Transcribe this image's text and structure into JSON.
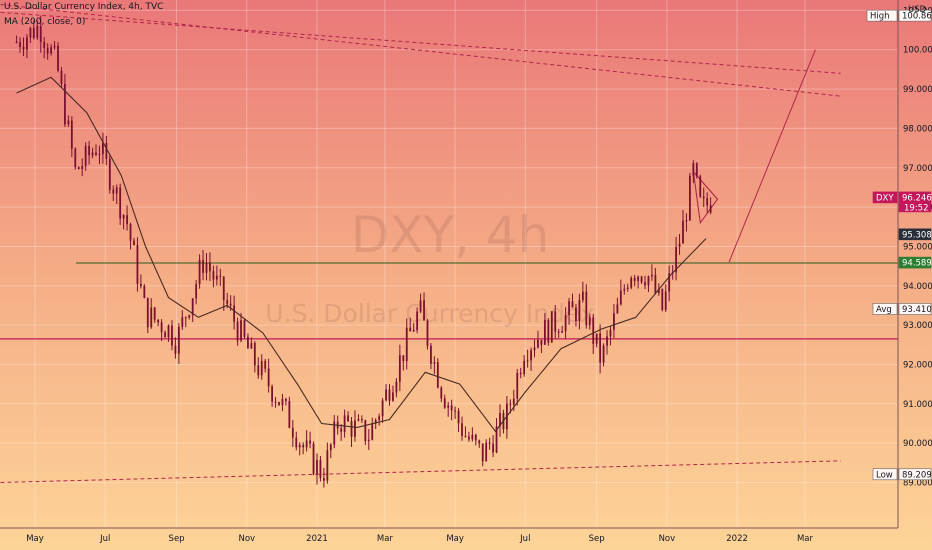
{
  "header": {
    "title": "U.S. Dollar Currency Index, 4h, TVC",
    "indicator": "MA (200, close, 0)"
  },
  "watermark": {
    "symbol": "DXY, 4h",
    "name": "U.S. Dollar Currency Index"
  },
  "currency_label": "USD",
  "colors": {
    "candle": "#7a1030",
    "moving_average": "#4a2a22",
    "support_line": "#c2185b",
    "resistance_line": "#556b2f",
    "trend_dashed": "#b0264a",
    "price_tag": "#c2185b",
    "level_tag": "#2e7d32",
    "dark_tag": "#2a2e39"
  },
  "chart_data": {
    "type": "candlestick",
    "title": "U.S. Dollar Currency Index, 4h, TVC",
    "xlabel": "",
    "ylabel": "",
    "ylim": [
      88.2,
      101.1
    ],
    "y_ticks": [
      "101.000",
      "100.000",
      "99.000",
      "98.000",
      "97.000",
      "96.000",
      "95.000",
      "94.000",
      "93.000",
      "92.000",
      "91.000",
      "90.000",
      "89.000"
    ],
    "x_ticks": [
      "May",
      "Jul",
      "Sep",
      "Nov",
      "2021",
      "Mar",
      "May",
      "Jul",
      "Sep",
      "Nov",
      "2022",
      "Mar"
    ],
    "price_anchors": [
      {
        "date": "2020-04-15",
        "value": 100.2
      },
      {
        "date": "2020-05-05",
        "value": 100.6
      },
      {
        "date": "2020-05-20",
        "value": 99.6
      },
      {
        "date": "2020-06-05",
        "value": 96.9
      },
      {
        "date": "2020-06-25",
        "value": 97.6
      },
      {
        "date": "2020-07-20",
        "value": 95.6
      },
      {
        "date": "2020-08-05",
        "value": 93.3
      },
      {
        "date": "2020-08-25",
        "value": 92.9
      },
      {
        "date": "2020-09-01",
        "value": 92.6
      },
      {
        "date": "2020-09-25",
        "value": 94.7
      },
      {
        "date": "2020-10-15",
        "value": 93.5
      },
      {
        "date": "2020-11-05",
        "value": 92.2
      },
      {
        "date": "2020-12-01",
        "value": 91.0
      },
      {
        "date": "2020-12-20",
        "value": 89.9
      },
      {
        "date": "2021-01-06",
        "value": 89.2
      },
      {
        "date": "2021-01-20",
        "value": 90.6
      },
      {
        "date": "2021-02-15",
        "value": 90.2
      },
      {
        "date": "2021-03-10",
        "value": 91.8
      },
      {
        "date": "2021-03-31",
        "value": 93.4
      },
      {
        "date": "2021-04-20",
        "value": 91.3
      },
      {
        "date": "2021-05-10",
        "value": 90.2
      },
      {
        "date": "2021-05-25",
        "value": 89.7
      },
      {
        "date": "2021-06-15",
        "value": 90.7
      },
      {
        "date": "2021-06-30",
        "value": 92.4
      },
      {
        "date": "2021-07-20",
        "value": 92.9
      },
      {
        "date": "2021-08-20",
        "value": 93.5
      },
      {
        "date": "2021-09-05",
        "value": 92.1
      },
      {
        "date": "2021-09-30",
        "value": 94.4
      },
      {
        "date": "2021-10-15",
        "value": 94.3
      },
      {
        "date": "2021-10-28",
        "value": 93.4
      },
      {
        "date": "2021-11-15",
        "value": 95.5
      },
      {
        "date": "2021-11-24",
        "value": 96.9
      },
      {
        "date": "2021-12-01",
        "value": 95.9
      },
      {
        "date": "2021-12-10",
        "value": 96.2
      }
    ],
    "ma200": {
      "name": "MA (200, close, 0)",
      "points": [
        {
          "date": "2020-04-15",
          "value": 98.9
        },
        {
          "date": "2020-05-15",
          "value": 99.3
        },
        {
          "date": "2020-06-15",
          "value": 98.4
        },
        {
          "date": "2020-07-15",
          "value": 96.8
        },
        {
          "date": "2020-08-05",
          "value": 95.0
        },
        {
          "date": "2020-08-25",
          "value": 93.7
        },
        {
          "date": "2020-09-20",
          "value": 93.2
        },
        {
          "date": "2020-10-15",
          "value": 93.5
        },
        {
          "date": "2020-11-15",
          "value": 92.8
        },
        {
          "date": "2020-12-15",
          "value": 91.5
        },
        {
          "date": "2021-01-05",
          "value": 90.5
        },
        {
          "date": "2021-02-05",
          "value": 90.4
        },
        {
          "date": "2021-03-05",
          "value": 90.6
        },
        {
          "date": "2021-04-05",
          "value": 91.8
        },
        {
          "date": "2021-05-05",
          "value": 91.5
        },
        {
          "date": "2021-06-05",
          "value": 90.3
        },
        {
          "date": "2021-07-01",
          "value": 91.3
        },
        {
          "date": "2021-08-01",
          "value": 92.4
        },
        {
          "date": "2021-09-05",
          "value": 92.9
        },
        {
          "date": "2021-10-05",
          "value": 93.2
        },
        {
          "date": "2021-11-05",
          "value": 94.3
        },
        {
          "date": "2021-12-05",
          "value": 95.2
        }
      ]
    },
    "levels": [
      {
        "name": "support-line",
        "value": 92.65
      },
      {
        "name": "resistance-line",
        "value": 94.58
      }
    ],
    "trend_lines": [
      {
        "name": "upper-trend-line-a",
        "from": {
          "date": "2020-04-01",
          "value": 100.95
        },
        "to": {
          "date": "2022-04-01",
          "value": 99.4
        }
      },
      {
        "name": "upper-trend-line-b",
        "from": {
          "date": "2020-04-01",
          "value": 101.15
        },
        "to": {
          "date": "2022-04-01",
          "value": 98.82
        }
      },
      {
        "name": "lower-trend-line",
        "from": {
          "date": "2020-04-01",
          "value": 89.0
        },
        "to": {
          "date": "2022-04-01",
          "value": 89.55
        }
      },
      {
        "name": "projection-line",
        "from": {
          "date": "2021-12-25",
          "value": 94.6
        },
        "to": {
          "date": "2022-03-10",
          "value": 100.0
        }
      }
    ],
    "pennant": [
      {
        "date": "2021-11-24",
        "value": 96.9
      },
      {
        "date": "2021-12-15",
        "value": 96.2
      },
      {
        "date": "2021-11-30",
        "value": 95.6
      }
    ],
    "labels": [
      {
        "name": "high",
        "tag": "High",
        "value": "100.867",
        "y": 100.867,
        "style": "light"
      },
      {
        "name": "dxy",
        "tag": "DXY",
        "value": "96.246",
        "sub": "19:52",
        "y": 96.246,
        "style": "pink"
      },
      {
        "name": "ma",
        "tag": "",
        "value": "95.308",
        "y": 95.308,
        "style": "dark"
      },
      {
        "name": "level",
        "tag": "",
        "value": "94.589",
        "y": 94.589,
        "style": "green"
      },
      {
        "name": "avg",
        "tag": "Avg",
        "value": "93.410",
        "y": 93.41,
        "style": "light"
      },
      {
        "name": "low",
        "tag": "Low",
        "value": "89.209",
        "y": 89.209,
        "style": "light"
      }
    ]
  }
}
